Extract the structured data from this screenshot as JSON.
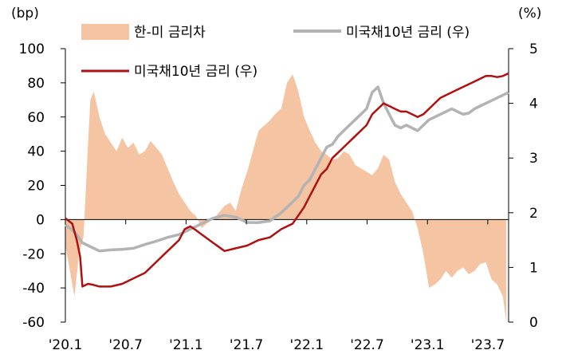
{
  "chart_data": {
    "type": "bar+line",
    "title": "",
    "left_axis": {
      "unit": "(bp)",
      "ylim": [
        -60,
        100
      ],
      "ticks": [
        "100",
        "80",
        "60",
        "40",
        "20",
        "0",
        "-20",
        "-40",
        "-60"
      ]
    },
    "right_axis": {
      "unit": "(%)",
      "ylim": [
        0,
        5
      ],
      "ticks": [
        "5",
        "4",
        "3",
        "2",
        "1",
        "0"
      ]
    },
    "x_ticks": [
      "'20.1",
      "'20.7",
      "'21.1",
      "'21.7",
      "'22.1",
      "'22.7",
      "'23.1",
      "'23.7"
    ],
    "legend": [
      {
        "label": "한-미 금리차",
        "type": "area",
        "color": "#f5c4a3",
        "axis": "left"
      },
      {
        "label": "미국채10년 금리 (우)",
        "type": "line",
        "color": "#b3b3b3",
        "axis": "right"
      },
      {
        "label": "미국채10년 금리 (우)",
        "type": "line",
        "color": "#b01010",
        "axis": "right"
      }
    ],
    "grid": false,
    "series": [
      {
        "name": "한-미 금리차",
        "axis": "left",
        "x": [
          2020.0,
          2020.04,
          2020.08,
          2020.12,
          2020.16,
          2020.2,
          2020.22,
          2020.25,
          2020.3,
          2020.35,
          2020.4,
          2020.45,
          2020.5,
          2020.55,
          2020.6,
          2020.65,
          2020.7,
          2020.75,
          2020.8,
          2020.85,
          2020.9,
          2020.95,
          2021.0,
          2021.05,
          2021.1,
          2021.15,
          2021.2,
          2021.25,
          2021.3,
          2021.35,
          2021.4,
          2021.45,
          2021.5,
          2021.55,
          2021.6,
          2021.65,
          2021.7,
          2021.75,
          2021.8,
          2021.85,
          2021.9,
          2021.95,
          2022.0,
          2022.05,
          2022.1,
          2022.15,
          2022.2,
          2022.25,
          2022.3,
          2022.35,
          2022.4,
          2022.45,
          2022.5,
          2022.55,
          2022.6,
          2022.65,
          2022.7,
          2022.75,
          2022.8,
          2022.85,
          2022.9,
          2022.95,
          2023.0,
          2023.05,
          2023.1,
          2023.15,
          2023.2,
          2023.25,
          2023.3,
          2023.35,
          2023.4,
          2023.45,
          2023.5,
          2023.55,
          2023.6,
          2023.65,
          2023.7,
          2023.75,
          2023.8,
          2023.85,
          2023.88
        ],
        "values": [
          -15,
          -30,
          -45,
          -20,
          -10,
          45,
          70,
          75,
          60,
          50,
          45,
          40,
          48,
          42,
          45,
          38,
          40,
          46,
          42,
          38,
          30,
          22,
          15,
          10,
          5,
          2,
          -5,
          -2,
          0,
          4,
          8,
          10,
          5,
          18,
          28,
          40,
          52,
          55,
          58,
          62,
          65,
          80,
          85,
          75,
          60,
          52,
          45,
          40,
          38,
          35,
          36,
          40,
          38,
          32,
          30,
          28,
          26,
          30,
          38,
          35,
          22,
          15,
          10,
          5,
          -5,
          -20,
          -40,
          -38,
          -35,
          -30,
          -34,
          -30,
          -28,
          -32,
          -30,
          -26,
          -25,
          -35,
          -38,
          -45,
          -60
        ]
      },
      {
        "name": "미국채10년 금리 (우) - gray",
        "axis": "right",
        "x": [
          2020.0,
          2020.05,
          2020.1,
          2020.15,
          2020.2,
          2020.25,
          2020.3,
          2020.4,
          2020.5,
          2020.6,
          2020.7,
          2020.8,
          2020.9,
          2021.0,
          2021.1,
          2021.2,
          2021.3,
          2021.4,
          2021.5,
          2021.6,
          2021.7,
          2021.8,
          2021.9,
          2022.0,
          2022.05,
          2022.1,
          2022.15,
          2022.2,
          2022.25,
          2022.3,
          2022.35,
          2022.4,
          2022.45,
          2022.5,
          2022.55,
          2022.6,
          2022.65,
          2022.7,
          2022.75,
          2022.8,
          2022.85,
          2022.9,
          2022.95,
          2023.0,
          2023.05,
          2023.1,
          2023.15,
          2023.2,
          2023.25,
          2023.3,
          2023.35,
          2023.4,
          2023.45,
          2023.5,
          2023.55,
          2023.6,
          2023.65,
          2023.7,
          2023.75,
          2023.8,
          2023.85,
          2023.9
        ],
        "values": [
          1.78,
          1.7,
          1.6,
          1.45,
          1.4,
          1.35,
          1.3,
          1.32,
          1.33,
          1.35,
          1.42,
          1.48,
          1.55,
          1.6,
          1.7,
          1.8,
          1.9,
          1.95,
          1.92,
          1.82,
          1.82,
          1.85,
          2.0,
          2.2,
          2.3,
          2.5,
          2.6,
          2.8,
          3.0,
          3.2,
          3.25,
          3.4,
          3.5,
          3.6,
          3.7,
          3.8,
          3.9,
          4.2,
          4.3,
          4.0,
          3.8,
          3.6,
          3.55,
          3.6,
          3.55,
          3.5,
          3.6,
          3.7,
          3.75,
          3.8,
          3.85,
          3.9,
          3.85,
          3.8,
          3.82,
          3.9,
          3.95,
          4.0,
          4.05,
          4.1,
          4.15,
          4.2
        ]
      },
      {
        "name": "미국채10년 금리 (우) - red",
        "axis": "right",
        "x": [
          2020.0,
          2020.03,
          2020.06,
          2020.1,
          2020.13,
          2020.15,
          2020.2,
          2020.25,
          2020.3,
          2020.4,
          2020.5,
          2020.6,
          2020.7,
          2020.8,
          2020.9,
          2021.0,
          2021.05,
          2021.1,
          2021.15,
          2021.2,
          2021.3,
          2021.4,
          2021.5,
          2021.6,
          2021.7,
          2021.8,
          2021.9,
          2022.0,
          2022.05,
          2022.1,
          2022.15,
          2022.2,
          2022.25,
          2022.3,
          2022.35,
          2022.4,
          2022.45,
          2022.5,
          2022.55,
          2022.6,
          2022.65,
          2022.7,
          2022.75,
          2022.8,
          2022.85,
          2022.9,
          2022.95,
          2023.0,
          2023.05,
          2023.1,
          2023.15,
          2023.2,
          2023.25,
          2023.3,
          2023.35,
          2023.4,
          2023.45,
          2023.5,
          2023.55,
          2023.6,
          2023.65,
          2023.7,
          2023.75,
          2023.8,
          2023.85,
          2023.9
        ],
        "values": [
          1.9,
          1.85,
          1.8,
          1.5,
          1.2,
          0.65,
          0.7,
          0.68,
          0.65,
          0.65,
          0.7,
          0.8,
          0.9,
          1.1,
          1.3,
          1.5,
          1.7,
          1.75,
          1.68,
          1.6,
          1.45,
          1.3,
          1.35,
          1.4,
          1.5,
          1.55,
          1.7,
          1.8,
          1.95,
          2.1,
          2.3,
          2.5,
          2.7,
          2.8,
          3.0,
          3.1,
          3.2,
          3.3,
          3.4,
          3.5,
          3.6,
          3.8,
          3.9,
          4.0,
          3.95,
          3.9,
          3.85,
          3.85,
          3.8,
          3.75,
          3.8,
          3.9,
          4.0,
          4.1,
          4.15,
          4.2,
          4.25,
          4.3,
          4.35,
          4.4,
          4.45,
          4.5,
          4.5,
          4.48,
          4.5,
          4.55
        ]
      }
    ]
  }
}
